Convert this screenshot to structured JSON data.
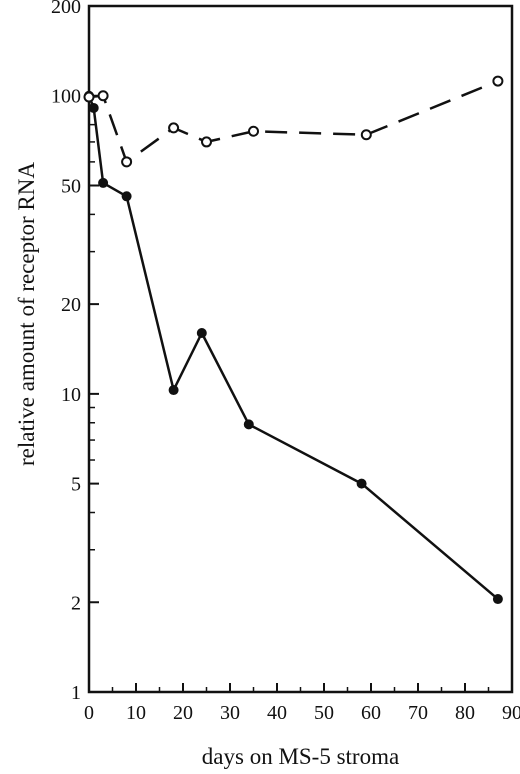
{
  "chart_data": {
    "type": "line",
    "title": "",
    "xlabel": "days on MS-5 stroma",
    "ylabel": "relative amount of receptor RNA",
    "xlim": [
      0,
      90
    ],
    "ylim": [
      1,
      200
    ],
    "yscale": "log",
    "xticks": [
      0,
      10,
      20,
      30,
      40,
      50,
      60,
      70,
      80,
      90
    ],
    "yticks": [
      1,
      2,
      5,
      10,
      20,
      50,
      100,
      200
    ],
    "yminor": [
      3,
      4,
      6,
      7,
      8,
      9,
      30,
      40,
      60,
      70,
      80,
      90
    ],
    "grid": false,
    "legend": "none",
    "series": [
      {
        "marker": "filled-circle",
        "line": "solid",
        "color": "#111111",
        "x": [
          0,
          1,
          3,
          8,
          18,
          24,
          34,
          58,
          87
        ],
        "y": [
          100,
          91,
          51,
          46,
          10.3,
          16,
          7.9,
          5.0,
          2.05
        ]
      },
      {
        "marker": "open-circle",
        "line": "dashed",
        "color": "#111111",
        "x": [
          0,
          3,
          8,
          18,
          25,
          35,
          59,
          87
        ],
        "y": [
          99,
          100,
          60,
          78,
          70,
          76,
          74,
          112
        ]
      }
    ]
  }
}
